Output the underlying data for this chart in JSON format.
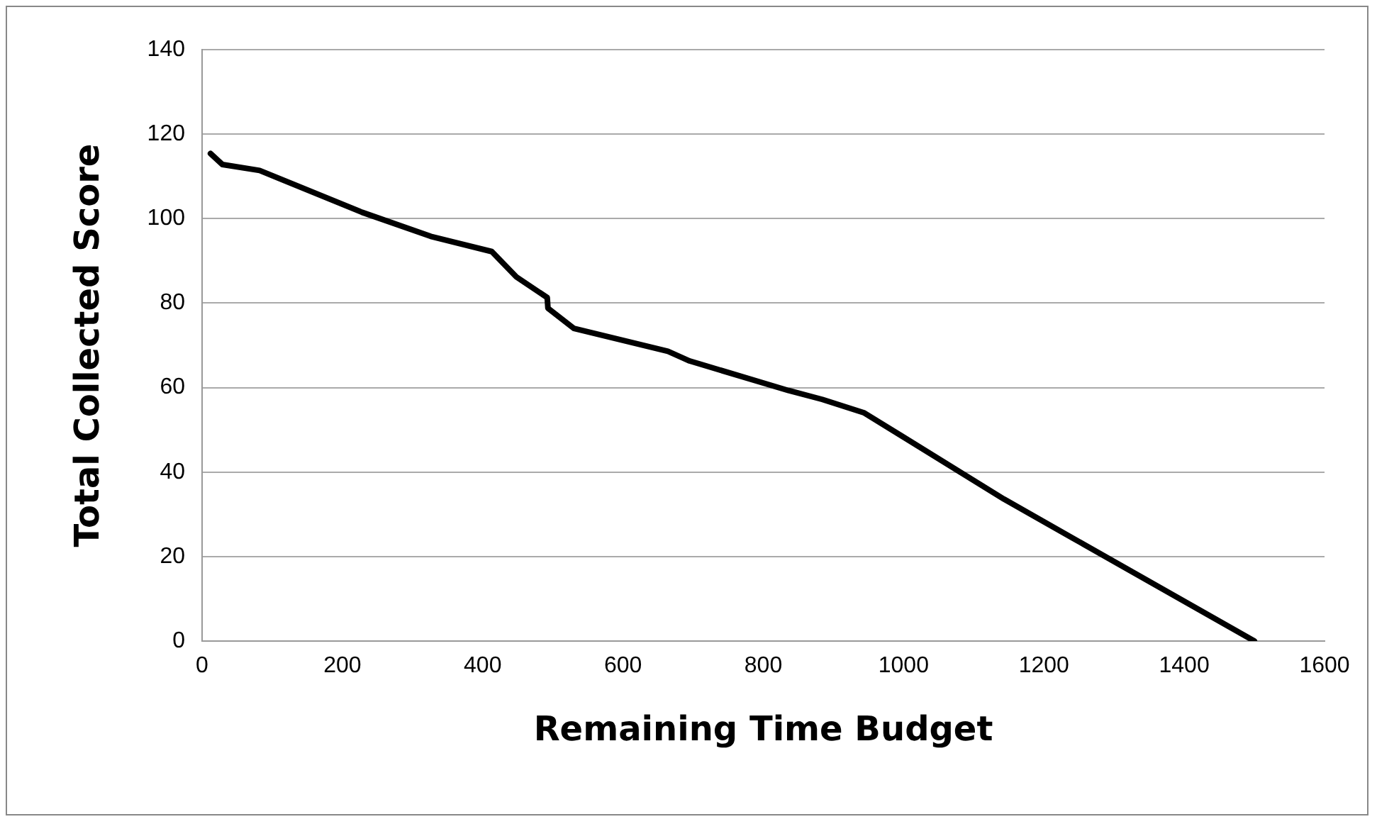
{
  "chart_data": {
    "type": "line",
    "xlabel": "Remaining Time Budget",
    "ylabel": "Total Collected Score",
    "x": [
      12,
      29,
      82,
      228,
      326,
      413,
      448,
      492,
      493,
      530,
      664,
      695,
      836,
      884,
      944,
      1143,
      1500
    ],
    "series": [
      {
        "color": "#000000",
        "values": [
          115.4,
          112.8,
          111.4,
          101.5,
          95.8,
          92.2,
          86.2,
          81.3,
          78.8,
          74,
          68.6,
          66.3,
          59.3,
          57.2,
          54,
          33.6,
          0
        ]
      }
    ],
    "xlim": [
      0,
      1600
    ],
    "xticks": [
      0,
      200,
      400,
      600,
      800,
      1000,
      1200,
      1400,
      1600
    ],
    "ylim": [
      0,
      140
    ],
    "yticks": [
      0,
      20,
      40,
      60,
      80,
      100,
      120,
      140
    ],
    "grid": "y",
    "legend": false,
    "marker": "none",
    "line_style": "solid"
  }
}
